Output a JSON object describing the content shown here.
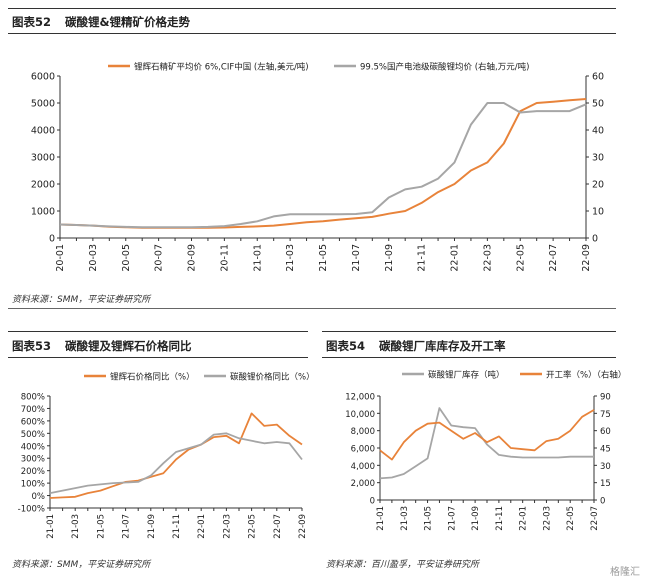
{
  "fig52": {
    "number": "图表52",
    "title": "碳酸锂&锂精矿价格走势",
    "source": "资料来源：SMM，平安证券研究所"
  },
  "fig53": {
    "number": "图表53",
    "title": "碳酸锂及锂辉石价格同比",
    "source": "资料来源：SMM，平安证券研究所"
  },
  "fig54": {
    "number": "图表54",
    "title": "碳酸锂厂库库存及开工率",
    "source": "资料来源：百川盈孚，平安证券研究所"
  },
  "watermark": "格隆汇",
  "chart_data": [
    {
      "id": "fig52",
      "type": "line",
      "x": [
        "20-01",
        "20-02",
        "20-03",
        "20-04",
        "20-05",
        "20-06",
        "20-07",
        "20-08",
        "20-09",
        "20-10",
        "20-11",
        "20-12",
        "21-01",
        "21-02",
        "21-03",
        "21-04",
        "21-05",
        "21-06",
        "21-07",
        "21-08",
        "21-09",
        "21-10",
        "21-11",
        "21-12",
        "22-01",
        "22-02",
        "22-03",
        "22-04",
        "22-05",
        "22-06",
        "22-07",
        "22-08",
        "22-09"
      ],
      "x_tick_labels": [
        "20-01",
        "20-03",
        "20-05",
        "20-07",
        "20-09",
        "20-11",
        "21-01",
        "21-03",
        "21-05",
        "21-07",
        "21-09",
        "21-11",
        "22-01",
        "22-03",
        "22-05",
        "22-07",
        "22-09"
      ],
      "ylim_left": [
        0,
        6000
      ],
      "yticks_left": [
        "0",
        "1000",
        "2000",
        "3000",
        "4000",
        "5000",
        "6000"
      ],
      "ylim_right": [
        0,
        60
      ],
      "yticks_right": [
        "0",
        "10",
        "20",
        "30",
        "40",
        "50",
        "60"
      ],
      "grid": false,
      "legend_position": "top",
      "series": [
        {
          "name": "锂辉石精矿平均价 6%,CIF中国 (左轴,美元/吨)",
          "axis": "left",
          "color": "#E8833A",
          "values": [
            500,
            480,
            460,
            420,
            400,
            380,
            380,
            380,
            380,
            380,
            390,
            410,
            430,
            460,
            520,
            580,
            620,
            680,
            730,
            780,
            900,
            1000,
            1300,
            1700,
            2000,
            2500,
            2800,
            3500,
            4700,
            5000,
            5050,
            5100,
            5150
          ]
        },
        {
          "name": "99.5%国产电池级碳酸锂均价 (右轴,万元/吨)",
          "axis": "right",
          "color": "#A6A6A6",
          "values": [
            5,
            4.8,
            4.6,
            4.3,
            4.1,
            4,
            4,
            4,
            4,
            4.1,
            4.4,
            5.2,
            6.2,
            8.0,
            8.8,
            8.8,
            8.8,
            8.8,
            8.9,
            9.5,
            15,
            18,
            19,
            22,
            28,
            42,
            50,
            50,
            46.5,
            47,
            47,
            47,
            49.5
          ]
        }
      ]
    },
    {
      "id": "fig53",
      "type": "line",
      "x": [
        "21-01",
        "21-02",
        "21-03",
        "21-04",
        "21-05",
        "21-06",
        "21-07",
        "21-08",
        "21-09",
        "21-10",
        "21-11",
        "21-12",
        "22-01",
        "22-02",
        "22-03",
        "22-04",
        "22-05",
        "22-06",
        "22-07",
        "22-08",
        "22-09"
      ],
      "x_tick_labels": [
        "21-01",
        "21-03",
        "21-05",
        "21-07",
        "21-09",
        "21-11",
        "22-01",
        "22-03",
        "22-05",
        "22-07",
        "22-09"
      ],
      "ylim": [
        -100,
        800
      ],
      "yticks": [
        "-100%",
        "0%",
        "100%",
        "200%",
        "300%",
        "400%",
        "500%",
        "600%",
        "700%",
        "800%"
      ],
      "grid": false,
      "legend_position": "top",
      "series": [
        {
          "name": "锂辉石价格同比（%）",
          "color": "#E8833A",
          "values": [
            -20,
            -15,
            -10,
            20,
            40,
            75,
            110,
            120,
            150,
            180,
            290,
            370,
            410,
            470,
            480,
            420,
            660,
            560,
            570,
            480,
            410
          ]
        },
        {
          "name": "碳酸锂价格同比（%）",
          "color": "#A6A6A6",
          "values": [
            20,
            40,
            60,
            80,
            90,
            100,
            105,
            110,
            160,
            260,
            350,
            380,
            410,
            490,
            500,
            460,
            440,
            420,
            430,
            420,
            290
          ]
        }
      ]
    },
    {
      "id": "fig54",
      "type": "line",
      "x": [
        "21-01",
        "21-02",
        "21-03",
        "21-04",
        "21-05",
        "21-06",
        "21-07",
        "21-08",
        "21-09",
        "21-10",
        "21-11",
        "21-12",
        "22-01",
        "22-02",
        "22-03",
        "22-04",
        "22-05",
        "22-06",
        "22-07"
      ],
      "x_tick_labels": [
        "21-01",
        "21-03",
        "21-05",
        "21-07",
        "21-09",
        "21-11",
        "22-01",
        "22-03",
        "22-05",
        "22-07"
      ],
      "ylim_left": [
        0,
        12000
      ],
      "yticks_left": [
        "0",
        "2,000",
        "4,000",
        "6,000",
        "8,000",
        "10,000",
        "12,000"
      ],
      "ylim_right": [
        0,
        90
      ],
      "yticks_right": [
        "0",
        "15",
        "30",
        "45",
        "60",
        "75",
        "90"
      ],
      "grid": false,
      "legend_position": "top",
      "series": [
        {
          "name": "碳酸锂厂库存（吨）",
          "axis": "left",
          "color": "#A6A6A6",
          "values": [
            2500,
            2600,
            3000,
            3900,
            4800,
            10600,
            8600,
            8400,
            8300,
            6400,
            5200,
            5000,
            4900,
            4900,
            4900,
            4900,
            5000,
            5000,
            5000
          ]
        },
        {
          "name": "开工率（%）（右轴）",
          "axis": "right",
          "color": "#E8833A",
          "values": [
            43,
            35,
            50,
            60,
            66,
            67,
            60,
            53,
            58,
            50,
            55,
            45,
            44,
            43,
            51,
            53,
            60,
            72,
            78
          ]
        }
      ]
    }
  ]
}
